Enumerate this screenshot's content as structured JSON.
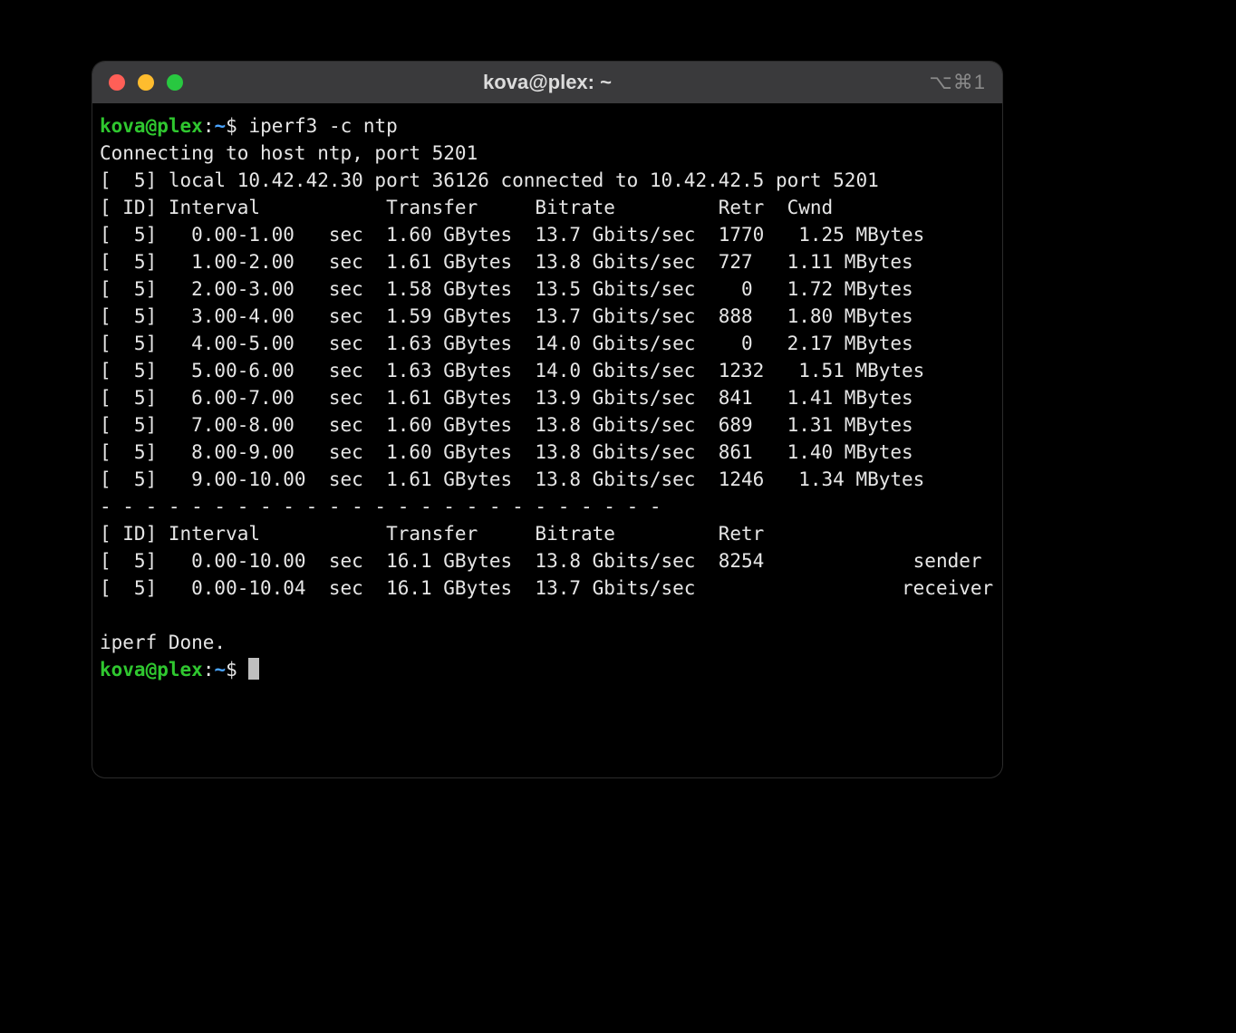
{
  "window": {
    "title": "kova@plex: ~",
    "tab_hint": "⌥⌘1",
    "colors": {
      "titlebar_bg": "#3a3a3c",
      "body_bg": "#000000",
      "text": "#e6e6e6",
      "user_host": "#2fc72f",
      "path": "#4aa4ff",
      "close": "#ff5f57",
      "min": "#febc2e",
      "max": "#28c840"
    }
  },
  "prompt": {
    "user": "kova",
    "at": "@",
    "host": "plex",
    "sep": ":",
    "path": "~",
    "sigil": "$"
  },
  "command": "iperf3 -c ntp",
  "output": {
    "connecting": "Connecting to host ntp, port 5201",
    "local_line": "[  5] local 10.42.42.30 port 36126 connected to 10.42.42.5 port 5201",
    "header1": "[ ID] Interval           Transfer     Bitrate         Retr  Cwnd",
    "rows": [
      "[  5]   0.00-1.00   sec  1.60 GBytes  13.7 Gbits/sec  1770   1.25 MBytes",
      "[  5]   1.00-2.00   sec  1.61 GBytes  13.8 Gbits/sec  727   1.11 MBytes",
      "[  5]   2.00-3.00   sec  1.58 GBytes  13.5 Gbits/sec    0   1.72 MBytes",
      "[  5]   3.00-4.00   sec  1.59 GBytes  13.7 Gbits/sec  888   1.80 MBytes",
      "[  5]   4.00-5.00   sec  1.63 GBytes  14.0 Gbits/sec    0   2.17 MBytes",
      "[  5]   5.00-6.00   sec  1.63 GBytes  14.0 Gbits/sec  1232   1.51 MBytes",
      "[  5]   6.00-7.00   sec  1.61 GBytes  13.9 Gbits/sec  841   1.41 MBytes",
      "[  5]   7.00-8.00   sec  1.60 GBytes  13.8 Gbits/sec  689   1.31 MBytes",
      "[  5]   8.00-9.00   sec  1.60 GBytes  13.8 Gbits/sec  861   1.40 MBytes",
      "[  5]   9.00-10.00  sec  1.61 GBytes  13.8 Gbits/sec  1246   1.34 MBytes"
    ],
    "sep": "- - - - - - - - - - - - - - - - - - - - - - - - -",
    "header2": "[ ID] Interval           Transfer     Bitrate         Retr",
    "summary": [
      "[  5]   0.00-10.00  sec  16.1 GBytes  13.8 Gbits/sec  8254             sender",
      "[  5]   0.00-10.04  sec  16.1 GBytes  13.7 Gbits/sec                  receiver"
    ],
    "done": "iperf Done."
  }
}
